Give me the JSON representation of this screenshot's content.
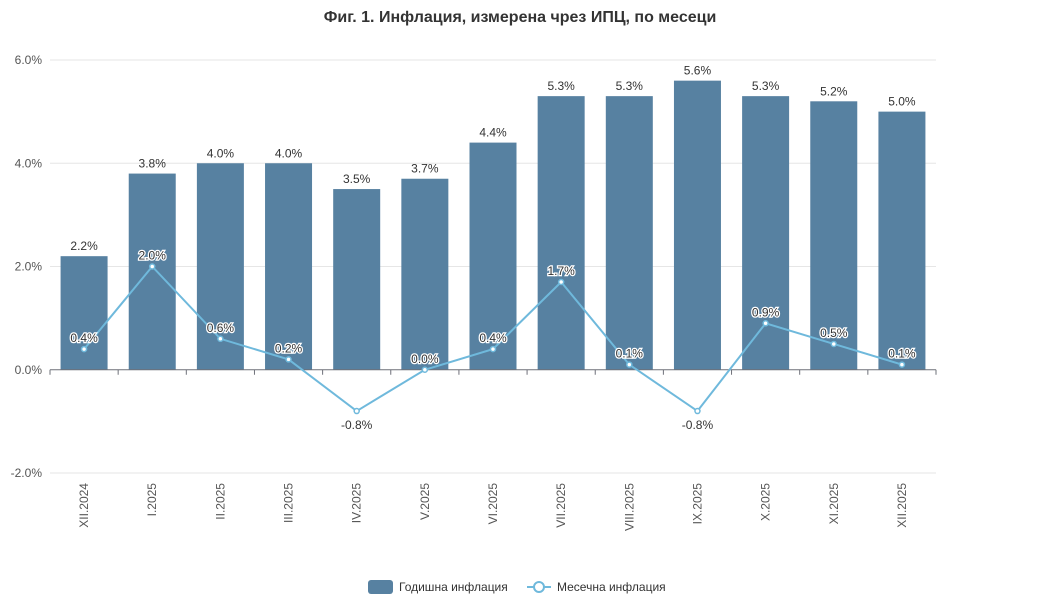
{
  "chart_data": {
    "type": "bar",
    "title": "Фиг. 1. Инфлация, измерена чрез ИПЦ, по месеци",
    "categories": [
      "XII.2024",
      "I.2025",
      "II.2025",
      "III.2025",
      "IV.2025",
      "V.2025",
      "VI.2025",
      "VII.2025",
      "VIII.2025",
      "IX.2025",
      "X.2025",
      "XI.2025",
      "XII.2025"
    ],
    "ylim": [
      -2.0,
      6.0
    ],
    "yticks": [
      -2.0,
      0.0,
      2.0,
      4.0,
      6.0
    ],
    "ytick_labels": [
      "-2.0%",
      "0.0%",
      "2.0%",
      "4.0%",
      "6.0%"
    ],
    "grid": true,
    "legend_position": "bottom-center",
    "series": [
      {
        "name": "Годишна инфлация",
        "type": "bar",
        "color": "#5781a1",
        "values": [
          2.2,
          3.8,
          4.0,
          4.0,
          3.5,
          3.7,
          4.4,
          5.3,
          5.3,
          5.6,
          5.3,
          5.2,
          5.0
        ],
        "labels": [
          "2.2%",
          "3.8%",
          "4.0%",
          "4.0%",
          "3.5%",
          "3.7%",
          "4.4%",
          "5.3%",
          "5.3%",
          "5.6%",
          "5.3%",
          "5.2%",
          "5.0%"
        ]
      },
      {
        "name": "Месечна инфлация",
        "type": "line",
        "color": "#6fb9dc",
        "values": [
          0.4,
          2.0,
          0.6,
          0.2,
          -0.8,
          0.0,
          0.4,
          1.7,
          0.1,
          -0.8,
          0.9,
          0.5,
          0.1
        ],
        "labels": [
          "0.4%",
          "2.0%",
          "0.6%",
          "0.2%",
          "-0.8%",
          "0.0%",
          "0.4%",
          "1.7%",
          "0.1%",
          "-0.8%",
          "0.9%",
          "0.5%",
          "0.1%"
        ]
      }
    ]
  }
}
